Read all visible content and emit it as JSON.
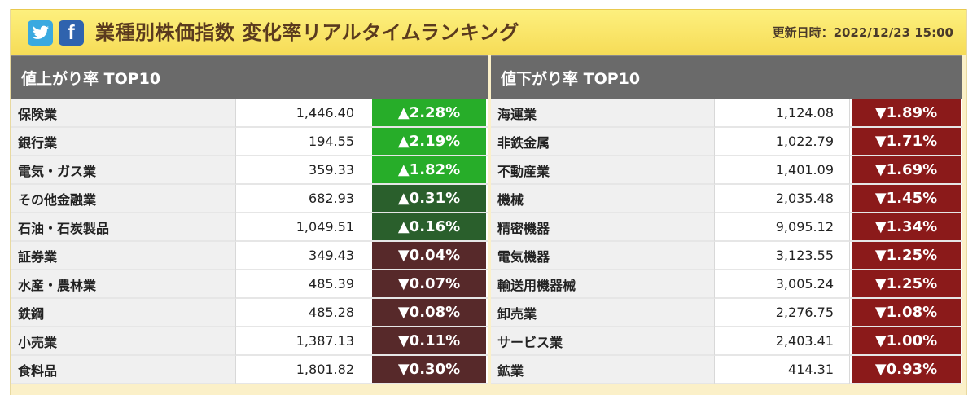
{
  "header": {
    "title": "業種別株価指数 変化率リアルタイムランキング",
    "updated": "更新日時：2022/12/23 15:00",
    "twitter_icon": "twitter-icon",
    "facebook_icon": "facebook-icon",
    "facebook_glyph": "f"
  },
  "colors": {
    "up_strong": "#27ad29",
    "up_weak": "#2a5f2c",
    "down_weak": "#57292a",
    "down_strong": "#8b1a1a",
    "header_bg": "#f6dc57",
    "panel_head_bg": "#6a6a6a"
  },
  "gainers": {
    "heading": "値上がり率 TOP10",
    "rows": [
      {
        "name": "保険業",
        "value": "1,446.40",
        "change": "▲2.28%",
        "tone": "up-strong"
      },
      {
        "name": "銀行業",
        "value": "194.55",
        "change": "▲2.19%",
        "tone": "up-strong"
      },
      {
        "name": "電気・ガス業",
        "value": "359.33",
        "change": "▲1.82%",
        "tone": "up-strong"
      },
      {
        "name": "その他金融業",
        "value": "682.93",
        "change": "▲0.31%",
        "tone": "up-weak"
      },
      {
        "name": "石油・石炭製品",
        "value": "1,049.51",
        "change": "▲0.16%",
        "tone": "up-weak"
      },
      {
        "name": "証券業",
        "value": "349.43",
        "change": "▼0.04%",
        "tone": "down-weak"
      },
      {
        "name": "水産・農林業",
        "value": "485.39",
        "change": "▼0.07%",
        "tone": "down-weak"
      },
      {
        "name": "鉄鋼",
        "value": "485.28",
        "change": "▼0.08%",
        "tone": "down-weak"
      },
      {
        "name": "小売業",
        "value": "1,387.13",
        "change": "▼0.11%",
        "tone": "down-weak"
      },
      {
        "name": "食料品",
        "value": "1,801.82",
        "change": "▼0.30%",
        "tone": "down-weak"
      }
    ]
  },
  "losers": {
    "heading": "値下がり率 TOP10",
    "rows": [
      {
        "name": "海運業",
        "value": "1,124.08",
        "change": "▼1.89%",
        "tone": "down-strong"
      },
      {
        "name": "非鉄金属",
        "value": "1,022.79",
        "change": "▼1.71%",
        "tone": "down-strong"
      },
      {
        "name": "不動産業",
        "value": "1,401.09",
        "change": "▼1.69%",
        "tone": "down-strong"
      },
      {
        "name": "機械",
        "value": "2,035.48",
        "change": "▼1.45%",
        "tone": "down-strong"
      },
      {
        "name": "精密機器",
        "value": "9,095.12",
        "change": "▼1.34%",
        "tone": "down-strong"
      },
      {
        "name": "電気機器",
        "value": "3,123.55",
        "change": "▼1.25%",
        "tone": "down-strong"
      },
      {
        "name": "輸送用機器械",
        "value": "3,005.24",
        "change": "▼1.25%",
        "tone": "down-strong"
      },
      {
        "name": "卸売業",
        "value": "2,276.75",
        "change": "▼1.08%",
        "tone": "down-strong"
      },
      {
        "name": "サービス業",
        "value": "2,403.41",
        "change": "▼1.00%",
        "tone": "down-strong"
      },
      {
        "name": "鉱業",
        "value": "414.31",
        "change": "▼0.93%",
        "tone": "down-strong"
      }
    ]
  }
}
